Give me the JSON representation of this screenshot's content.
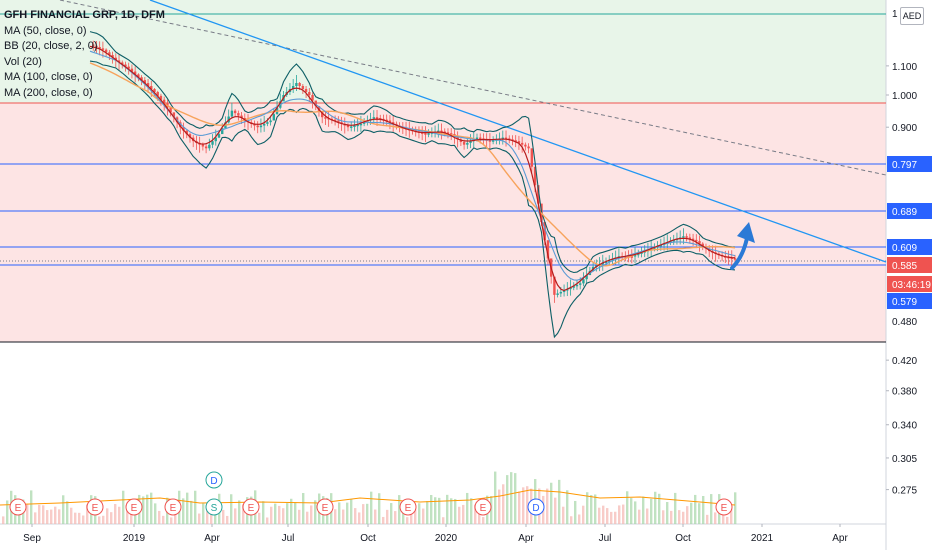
{
  "chart_data": {
    "type": "line",
    "title": "GFH FINANCIAL GRP, 1D, DFM",
    "currency": "AED",
    "y_axis_labels": [
      "1.100",
      "1.000",
      "0.900",
      "0.420",
      "0.380",
      "0.340",
      "0.305",
      "0.275"
    ],
    "price_tags": [
      {
        "label": "0.797",
        "color": "#2962ff"
      },
      {
        "label": "0.689",
        "color": "#2962ff"
      },
      {
        "label": "0.609",
        "color": "#2962ff"
      },
      {
        "label": "0.585",
        "color": "#ef5350"
      },
      {
        "label": "03:46:19",
        "color": "#ef5350"
      },
      {
        "label": "0.579",
        "color": "#2962ff"
      },
      {
        "label": "0.480",
        "color": "#ffffff"
      }
    ],
    "x_ticks": [
      "Sep",
      "2019",
      "Apr",
      "Jul",
      "Oct",
      "2020",
      "Apr",
      "Jul",
      "Oct",
      "2021",
      "Apr"
    ],
    "indicators": [
      "MA (50, close, 0)",
      "BB (20, close, 2, 0)",
      "Vol (20)",
      "MA (100, close, 0)",
      "MA (200, close, 0)"
    ],
    "zones": [
      {
        "name": "upper",
        "color": "#e8f5e9",
        "from": 0.975,
        "to": 1.25
      },
      {
        "name": "lower",
        "color": "#fde4e4",
        "from": 0.455,
        "to": 0.975
      }
    ],
    "horizontal_levels": [
      0.975,
      0.797,
      0.689,
      0.609,
      0.585,
      0.579,
      0.455
    ],
    "series": [
      {
        "values": [
          1.18,
          1.16,
          1.12,
          1.09,
          1.05,
          1.01,
          0.96,
          0.9,
          0.86,
          0.84,
          0.88,
          0.95,
          0.92,
          0.9,
          0.92,
          1.0,
          1.04,
          1.0,
          0.93,
          0.92,
          0.9,
          0.91,
          0.93,
          0.92,
          0.9,
          0.89,
          0.88,
          0.89,
          0.88,
          0.85,
          0.87,
          0.86,
          0.87,
          0.86,
          0.84,
          0.66,
          0.52,
          0.53,
          0.54,
          0.57,
          0.58,
          0.59,
          0.59,
          0.6,
          0.61,
          0.62,
          0.63,
          0.62,
          0.6,
          0.59,
          0.585
        ]
      }
    ],
    "event_markers": [
      "E",
      "E",
      "E",
      "S",
      "E",
      "E",
      "E",
      "E",
      "D",
      "E"
    ],
    "event_marker_top": "D"
  }
}
